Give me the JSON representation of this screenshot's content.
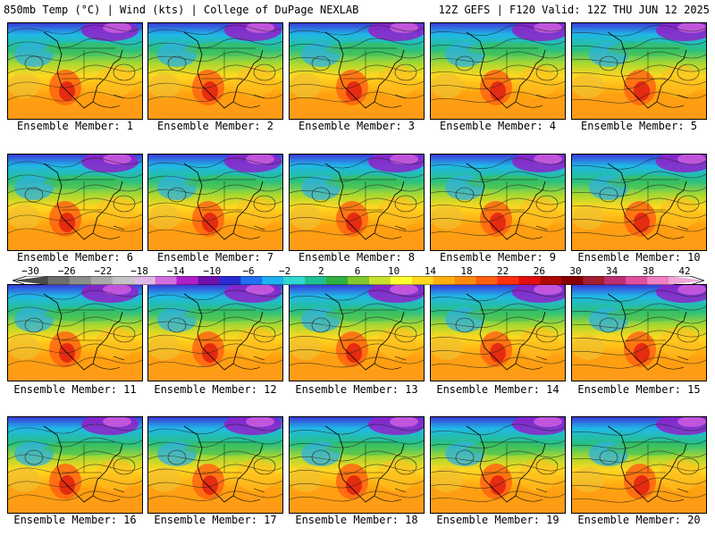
{
  "header": {
    "left": "850mb Temp (°C) | Wind (kts) | College of DuPage NEXLAB",
    "right": "12Z GEFS | F120 Valid: 12Z THU JUN 12 2025"
  },
  "members": [
    {
      "label": "Ensemble Member: 1"
    },
    {
      "label": "Ensemble Member: 2"
    },
    {
      "label": "Ensemble Member: 3"
    },
    {
      "label": "Ensemble Member: 4"
    },
    {
      "label": "Ensemble Member: 5"
    },
    {
      "label": "Ensemble Member: 6"
    },
    {
      "label": "Ensemble Member: 7"
    },
    {
      "label": "Ensemble Member: 8"
    },
    {
      "label": "Ensemble Member: 9"
    },
    {
      "label": "Ensemble Member: 10"
    },
    {
      "label": "Ensemble Member: 11"
    },
    {
      "label": "Ensemble Member: 12"
    },
    {
      "label": "Ensemble Member: 13"
    },
    {
      "label": "Ensemble Member: 14"
    },
    {
      "label": "Ensemble Member: 15"
    },
    {
      "label": "Ensemble Member: 16"
    },
    {
      "label": "Ensemble Member: 17"
    },
    {
      "label": "Ensemble Member: 18"
    },
    {
      "label": "Ensemble Member: 19"
    },
    {
      "label": "Ensemble Member: 20"
    }
  ],
  "colorbar": {
    "labels": [
      "−30",
      "−26",
      "−22",
      "−18",
      "−14",
      "−10",
      "−6",
      "−2",
      "2",
      "6",
      "10",
      "14",
      "18",
      "22",
      "26",
      "30",
      "34",
      "38",
      "42"
    ],
    "colors": [
      "#4a4a4a",
      "#6e6e6e",
      "#8c8c8c",
      "#a8a8a8",
      "#c4c4c4",
      "#e0b8e8",
      "#d070e0",
      "#b020c8",
      "#7010b0",
      "#2a2ad0",
      "#2070f0",
      "#20b0f0",
      "#30d8d0",
      "#20c090",
      "#30b040",
      "#80c830",
      "#c8e030",
      "#ffff30",
      "#ffd820",
      "#ffb010",
      "#ff8a10",
      "#ff6010",
      "#ff3010",
      "#e01010",
      "#b00808",
      "#880000",
      "#a02030",
      "#c03070",
      "#e050a0",
      "#f080c0",
      "#f0a8d8"
    ]
  }
}
